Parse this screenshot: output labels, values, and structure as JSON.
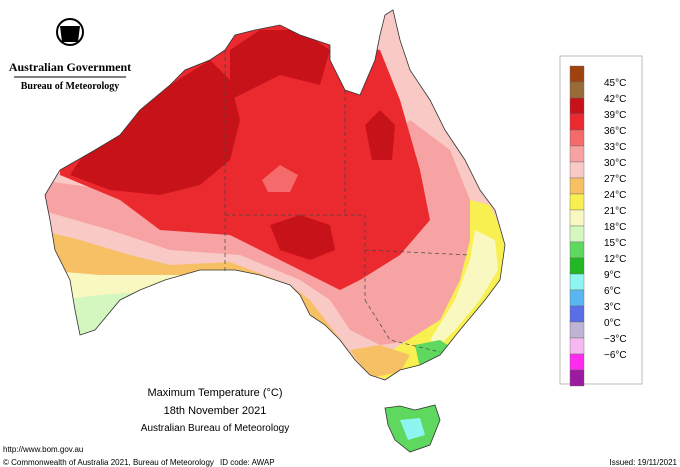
{
  "header": {
    "government": "Australian Government",
    "agency": "Bureau of Meteorology"
  },
  "caption": {
    "title": "Maximum Temperature (°C)",
    "date": "18th November 2021",
    "source": "Australian Bureau of Meteorology"
  },
  "footer": {
    "url": "http://www.bom.gov.au",
    "copyright": "© Commonwealth of Australia 2021, Bureau of Meteorology",
    "id_code": "ID code: AWAP",
    "issued": "Issued: 19/11/2021"
  },
  "legend": {
    "labels": [
      "45°C",
      "42°C",
      "39°C",
      "36°C",
      "33°C",
      "30°C",
      "27°C",
      "24°C",
      "21°C",
      "18°C",
      "15°C",
      "12°C",
      "9°C",
      "6°C",
      "3°C",
      "0°C",
      "−3°C",
      "−6°C"
    ],
    "colors": [
      "#a0420f",
      "#9a6a3a",
      "#c8121a",
      "#ea2a2e",
      "#f56a6a",
      "#f7a3a3",
      "#f9c9c6",
      "#f7c065",
      "#f7f050",
      "#f8f8c0",
      "#d4f7c0",
      "#5ed85e",
      "#23b823",
      "#8ef5f0",
      "#5ab6f0",
      "#5a6ee8",
      "#c0b4d4",
      "#f5b8f0",
      "#ff2cf0",
      "#9c1aa0"
    ]
  }
}
